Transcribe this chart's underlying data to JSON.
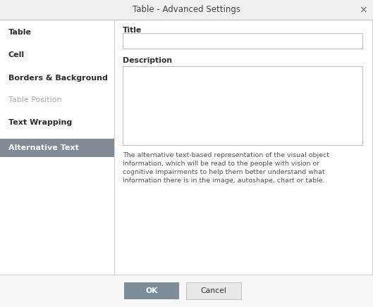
{
  "title": "Table - Advanced Settings",
  "close_x": "×",
  "bg_color": "#f0f0f0",
  "dialog_bg": "#ffffff",
  "sidebar_bg": "#ffffff",
  "active_item_bg": "#808b96",
  "active_item_color": "#ffffff",
  "inactive_item_color": "#2c2c2c",
  "disabled_item_color": "#aaaaaa",
  "sidebar_items": [
    "Table",
    "Cell",
    "Borders & Background",
    "Table Position",
    "Text Wrapping",
    "Alternative Text"
  ],
  "active_item": "Alternative Text",
  "disabled_items": [
    "Table Position"
  ],
  "bold_items": [
    "Table",
    "Cell",
    "Borders & Background",
    "Text Wrapping",
    "Alternative Text"
  ],
  "right_panel_title_label": "Title",
  "right_panel_desc_label": "Description",
  "help_lines": [
    "The alternative text-based representation of the visual object",
    "information, which will be read to the people with vision or",
    "cognitive impairments to help them better understand what",
    "information there is in the image, autoshape, chart or table."
  ],
  "ok_label": "OK",
  "cancel_label": "Cancel",
  "ok_bg": "#7d8c99",
  "ok_color": "#ffffff",
  "cancel_bg": "#e8e8e8",
  "cancel_color": "#333333",
  "outer_border_color": "#c0c0c0",
  "title_bar_bg": "#f0f0f0",
  "sidebar_divider": "#d5d5d5",
  "input_border": "#c0c0c0",
  "input_bg": "#ffffff",
  "bottom_bar_bg": "#f8f8f8",
  "bottom_border": "#d0d0d0",
  "title_fontsize": 8.5,
  "sidebar_fontsize": 8.0,
  "label_fontsize": 7.8,
  "help_fontsize": 6.8,
  "button_fontsize": 7.8
}
